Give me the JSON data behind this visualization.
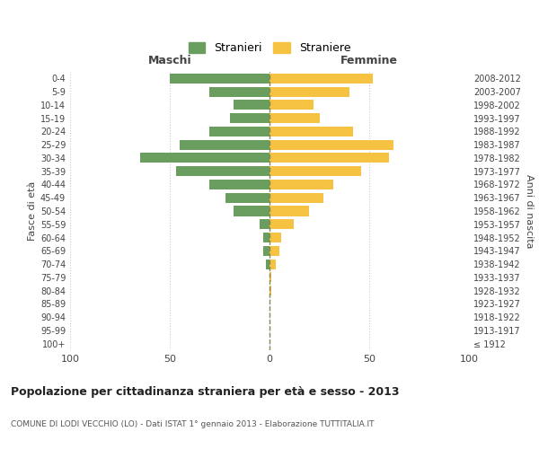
{
  "age_groups": [
    "100+",
    "95-99",
    "90-94",
    "85-89",
    "80-84",
    "75-79",
    "70-74",
    "65-69",
    "60-64",
    "55-59",
    "50-54",
    "45-49",
    "40-44",
    "35-39",
    "30-34",
    "25-29",
    "20-24",
    "15-19",
    "10-14",
    "5-9",
    "0-4"
  ],
  "birth_years": [
    "≤ 1912",
    "1913-1917",
    "1918-1922",
    "1923-1927",
    "1928-1932",
    "1933-1937",
    "1938-1942",
    "1943-1947",
    "1948-1952",
    "1953-1957",
    "1958-1962",
    "1963-1967",
    "1968-1972",
    "1973-1977",
    "1978-1982",
    "1983-1987",
    "1988-1992",
    "1993-1997",
    "1998-2002",
    "2003-2007",
    "2008-2012"
  ],
  "maschi": [
    0,
    0,
    0,
    0,
    0,
    0,
    2,
    3,
    3,
    5,
    18,
    22,
    30,
    47,
    65,
    45,
    30,
    20,
    18,
    30,
    50
  ],
  "femmine": [
    0,
    0,
    0,
    0,
    1,
    1,
    3,
    5,
    6,
    12,
    20,
    27,
    32,
    46,
    60,
    62,
    42,
    25,
    22,
    40,
    52
  ],
  "maschi_color": "#6a9e5e",
  "femmine_color": "#f5c242",
  "background_color": "#ffffff",
  "grid_color": "#cccccc",
  "center_line_color": "#888855",
  "title": "Popolazione per cittadinanza straniera per età e sesso - 2013",
  "subtitle": "COMUNE DI LODI VECCHIO (LO) - Dati ISTAT 1° gennaio 2013 - Elaborazione TUTTITALIA.IT",
  "ylabel_left": "Fasce di età",
  "ylabel_right": "Anni di nascita",
  "xlabel_left": "Maschi",
  "xlabel_top_right": "Femmine",
  "legend_stranieri": "Stranieri",
  "legend_straniere": "Straniere",
  "xlim": 100,
  "tick_positions": [
    -100,
    -50,
    0,
    50,
    100
  ],
  "tick_labels": [
    "100",
    "50",
    "0",
    "50",
    "100"
  ]
}
